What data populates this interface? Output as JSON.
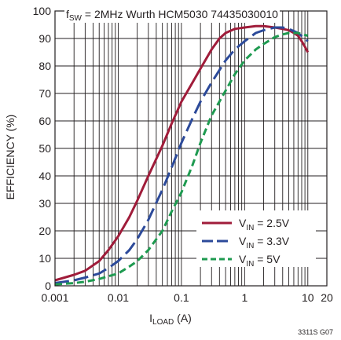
{
  "chart_data": {
    "type": "line",
    "title_main": "f",
    "title_sub": "SW",
    "title_rest": " = 2MHz Wurth HCM5030 74435030010",
    "xlabel_main": "I",
    "xlabel_sub": "LOAD",
    "xlabel_rest": " (A)",
    "ylabel": "EFFICIENCY (%)",
    "figure_id": "3311S G07",
    "x_scale": "log",
    "xlim": [
      0.001,
      20
    ],
    "ylim": [
      0,
      100
    ],
    "x_ticks": [
      {
        "value": 0.001,
        "label": "0.001"
      },
      {
        "value": 0.01,
        "label": "0.01"
      },
      {
        "value": 0.1,
        "label": "0.1"
      },
      {
        "value": 1,
        "label": "1"
      },
      {
        "value": 10,
        "label": "10"
      },
      {
        "value": 20,
        "label": "20"
      }
    ],
    "y_ticks": [
      0,
      10,
      20,
      30,
      40,
      50,
      60,
      70,
      80,
      90,
      100
    ],
    "grid": true,
    "legend_position": "bottom-right",
    "series": [
      {
        "name_main": "V",
        "name_sub": "IN",
        "name_rest": " = 2.5V",
        "color": "#a01c3a",
        "dash": "solid",
        "x": [
          0.001,
          0.002,
          0.003,
          0.005,
          0.007,
          0.01,
          0.015,
          0.02,
          0.03,
          0.05,
          0.07,
          0.1,
          0.15,
          0.2,
          0.3,
          0.4,
          0.5,
          0.7,
          1,
          1.5,
          2,
          3,
          4,
          5,
          6,
          7,
          8,
          9,
          10
        ],
        "y": [
          2,
          4,
          5.5,
          9,
          13,
          18,
          25,
          31,
          40,
          51,
          59,
          67,
          74,
          79,
          86,
          90,
          92,
          93.5,
          94,
          94.5,
          94.5,
          94,
          93.5,
          93,
          92,
          91,
          89,
          87,
          85
        ]
      },
      {
        "name_main": "V",
        "name_sub": "IN",
        "name_rest": " = 3.3V",
        "color": "#2c4a9a",
        "dash": "long-dash",
        "x": [
          0.001,
          0.002,
          0.003,
          0.005,
          0.007,
          0.01,
          0.015,
          0.02,
          0.03,
          0.05,
          0.07,
          0.1,
          0.15,
          0.2,
          0.3,
          0.5,
          0.7,
          1,
          1.5,
          2,
          3,
          4,
          5,
          7,
          10
        ],
        "y": [
          1,
          2,
          3,
          4.5,
          6.5,
          9,
          13,
          17,
          24,
          35,
          43,
          52,
          61,
          67,
          74,
          82,
          86,
          89,
          92,
          93,
          94,
          94,
          93.5,
          92,
          89
        ]
      },
      {
        "name_main": "V",
        "name_sub": "IN",
        "name_rest": " = 5V",
        "color": "#1e9a50",
        "dash": "dash",
        "x": [
          0.001,
          0.002,
          0.003,
          0.005,
          0.007,
          0.01,
          0.015,
          0.02,
          0.03,
          0.05,
          0.07,
          0.1,
          0.15,
          0.2,
          0.3,
          0.5,
          0.7,
          1,
          1.5,
          2,
          3,
          4,
          5,
          7,
          10
        ],
        "y": [
          0.5,
          1,
          1.5,
          2.5,
          3.5,
          4.5,
          7,
          9,
          13,
          20,
          27,
          34,
          44,
          52,
          62,
          71,
          77,
          82,
          86,
          88,
          90.5,
          91.5,
          92,
          92,
          91
        ]
      }
    ]
  }
}
